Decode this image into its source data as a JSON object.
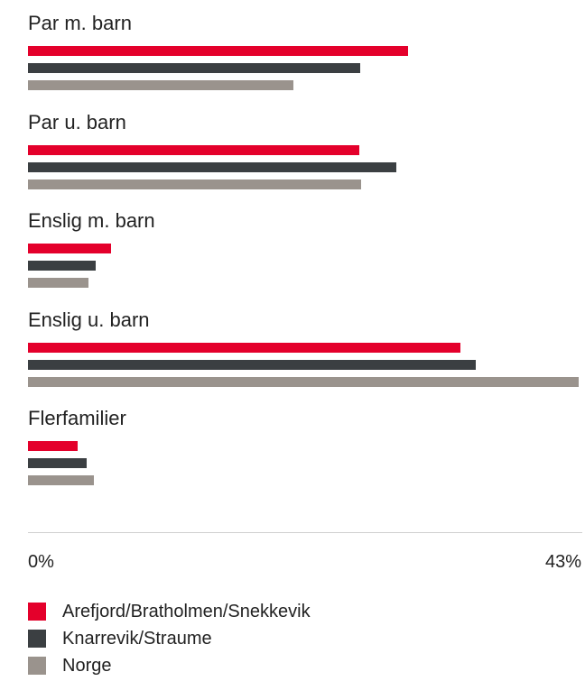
{
  "colors": {
    "series_1": "#e4002b",
    "series_2": "#3b3f42",
    "series_3": "#9a938d"
  },
  "chart_data": {
    "type": "bar",
    "orientation": "horizontal",
    "categories": [
      "Par m. barn",
      "Par u. barn",
      "Enslig m. barn",
      "Enslig u. barn",
      "Flerfamilier"
    ],
    "series": [
      {
        "name": "Arefjord/Bratholmen/Snekkevik",
        "values": [
          29.6,
          25.8,
          6.5,
          33.7,
          3.9
        ]
      },
      {
        "name": "Knarrevik/Straume",
        "values": [
          25.9,
          28.7,
          5.3,
          34.9,
          4.6
        ]
      },
      {
        "name": "Norge",
        "values": [
          20.7,
          26.0,
          4.7,
          42.9,
          5.1
        ]
      }
    ],
    "xlim": [
      0,
      43
    ],
    "tick_labels": [
      "0%",
      "43%"
    ],
    "legend_position": "bottom"
  }
}
